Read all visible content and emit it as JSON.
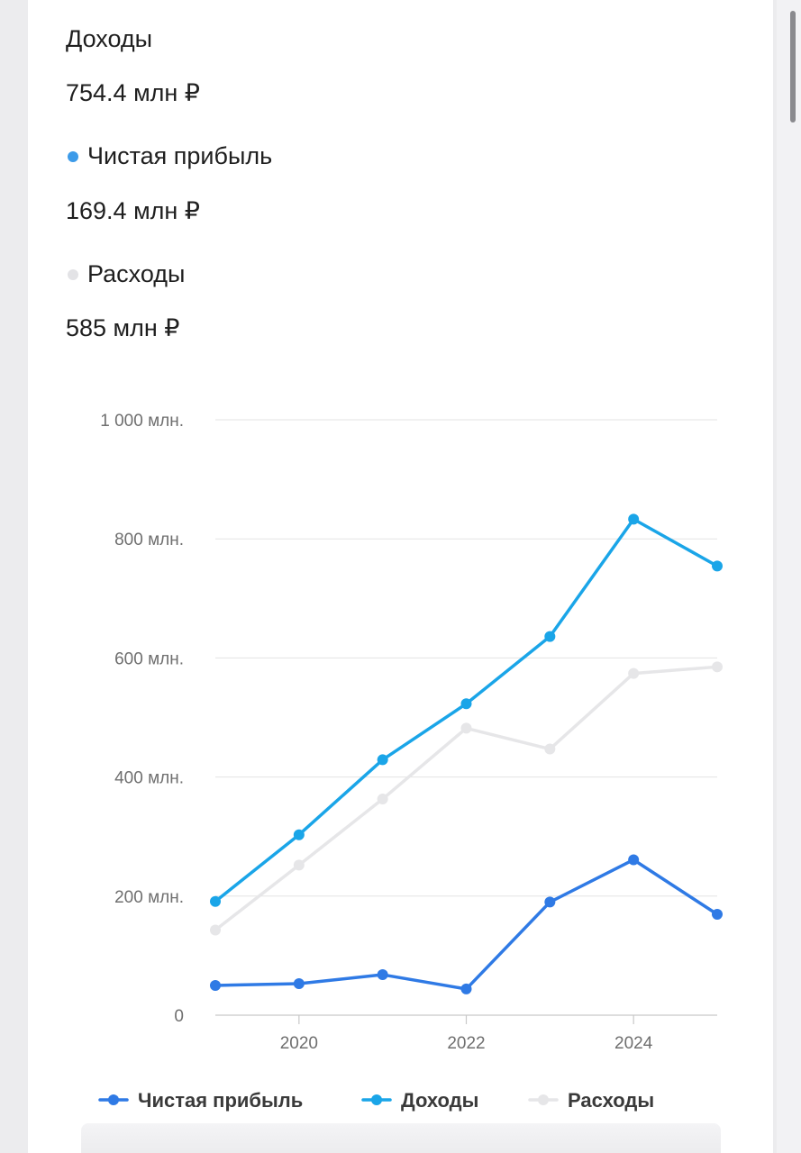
{
  "summary": {
    "income_label": "Доходы",
    "income_value": "754.4 млн ₽",
    "profit_label": "Чистая прибыль",
    "profit_value": "169.4 млн ₽",
    "expenses_label": "Расходы",
    "expenses_value": "585 млн ₽"
  },
  "colors": {
    "profit": "#2f7ae5",
    "income": "#1aa5e8",
    "expenses": "#e6e6e8",
    "profit_dot": "#3d9be9",
    "expenses_dot": "#e3e3e6"
  },
  "chart_data": {
    "type": "line",
    "x": [
      2019,
      2020,
      2021,
      2022,
      2023,
      2024,
      2025
    ],
    "xticks": [
      2020,
      2022,
      2024
    ],
    "xtick_labels": [
      "2020",
      "2022",
      "2024"
    ],
    "xlim": [
      2019,
      2025
    ],
    "ylim": [
      0,
      1000
    ],
    "yticks": [
      0,
      200,
      400,
      600,
      800,
      1000
    ],
    "ytick_labels": [
      "0",
      "200 млн.",
      "400 млн.",
      "600 млн.",
      "800 млн.",
      "1 000 млн."
    ],
    "grid": true,
    "legend_position": "bottom",
    "series": [
      {
        "name": "Чистая прибыль",
        "key": "profit",
        "values": [
          50,
          53,
          68,
          44,
          190,
          261,
          169.4
        ]
      },
      {
        "name": "Доходы",
        "key": "income",
        "values": [
          191,
          303,
          429,
          523,
          636,
          833,
          754.4
        ]
      },
      {
        "name": "Расходы",
        "key": "expenses",
        "values": [
          143,
          252,
          363,
          482,
          447,
          574,
          585
        ]
      }
    ]
  }
}
